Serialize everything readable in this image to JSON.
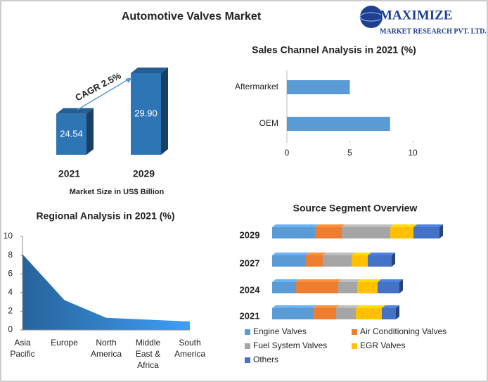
{
  "logo": {
    "name": "MAXIMIZE",
    "tagline": "MARKET RESEARCH PVT. LTD."
  },
  "chart_data": [
    {
      "type": "bar3d",
      "title": "Automotive Valves Market",
      "categories": [
        "2021",
        "2029"
      ],
      "values": [
        24.54,
        29.9
      ],
      "value_labels": [
        "24.54",
        "29.90"
      ],
      "color": "#2e75b6",
      "annotation": "CAGR 2.5%",
      "x_label": "Market Size in US$ Billion"
    },
    {
      "type": "hbar",
      "title": "Sales Channel Analysis in 2021 (%)",
      "categories": [
        "Aftermarket",
        "OEM"
      ],
      "values": [
        5,
        8.2
      ],
      "color": "#5b9bd5",
      "xlim": [
        0,
        10
      ],
      "xticks": [
        0,
        5,
        10
      ]
    },
    {
      "type": "area",
      "title": "Regional Analysis in 2021 (%)",
      "categories": [
        "Asia Pacific",
        "Europe",
        "North America",
        "Middle East & Africa",
        "South America"
      ],
      "values": [
        8.1,
        3.2,
        1.3,
        1.1,
        0.9
      ],
      "color": "#2e75b6",
      "ylim": [
        0,
        10
      ],
      "yticks": [
        0,
        2,
        4,
        6,
        8,
        10
      ]
    },
    {
      "type": "stacked_hbar",
      "title": "Source Segment Overview",
      "categories": [
        "2029",
        "2027",
        "2024",
        "2021"
      ],
      "series": [
        {
          "name": "Engine Valves",
          "color": "#5b9bd5",
          "values": [
            61,
            48,
            34,
            58
          ]
        },
        {
          "name": "Air Conditioning Valves",
          "color": "#ed7d31",
          "values": [
            38,
            24,
            60,
            33
          ]
        },
        {
          "name": "Fuel System Valves",
          "color": "#a5a5a5",
          "values": [
            69,
            41,
            27,
            28
          ]
        },
        {
          "name": "EGR Valves",
          "color": "#ffc000",
          "values": [
            33,
            23,
            29,
            37
          ]
        },
        {
          "name": "Others",
          "color": "#4472c4",
          "values": [
            37,
            34,
            31,
            20
          ]
        }
      ]
    }
  ]
}
